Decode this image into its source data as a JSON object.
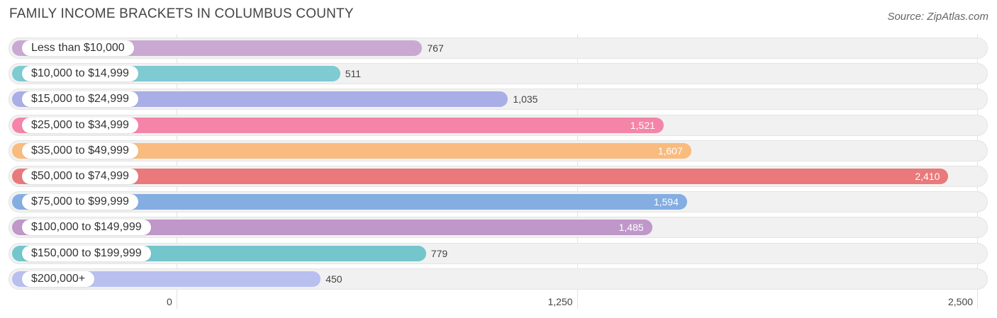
{
  "header": {
    "title": "FAMILY INCOME BRACKETS IN COLUMBUS COUNTY",
    "source": "Source: ZipAtlas.com"
  },
  "chart_data": {
    "type": "bar",
    "orientation": "horizontal",
    "title": "FAMILY INCOME BRACKETS IN COLUMBUS COUNTY",
    "categories": [
      "Less than $10,000",
      "$10,000 to $14,999",
      "$15,000 to $24,999",
      "$25,000 to $34,999",
      "$35,000 to $49,999",
      "$50,000 to $74,999",
      "$75,000 to $99,999",
      "$100,000 to $149,999",
      "$150,000 to $199,999",
      "$200,000+"
    ],
    "values": [
      767,
      511,
      1035,
      1521,
      1607,
      2410,
      1594,
      1485,
      779,
      450
    ],
    "value_labels": [
      "767",
      "511",
      "1,035",
      "1,521",
      "1,607",
      "2,410",
      "1,594",
      "1,485",
      "779",
      "450"
    ],
    "colors": [
      "#c9a9d1",
      "#7ecbd1",
      "#a9aee6",
      "#f585a8",
      "#f9bb7e",
      "#e9797a",
      "#84ade2",
      "#bf97c8",
      "#73c6cc",
      "#b9c0ef"
    ],
    "xlim": [
      0,
      2500
    ],
    "x_ticks": [
      0,
      1250,
      2500
    ],
    "x_tick_labels": [
      "0",
      "1,250",
      "2,500"
    ],
    "grid": true
  }
}
